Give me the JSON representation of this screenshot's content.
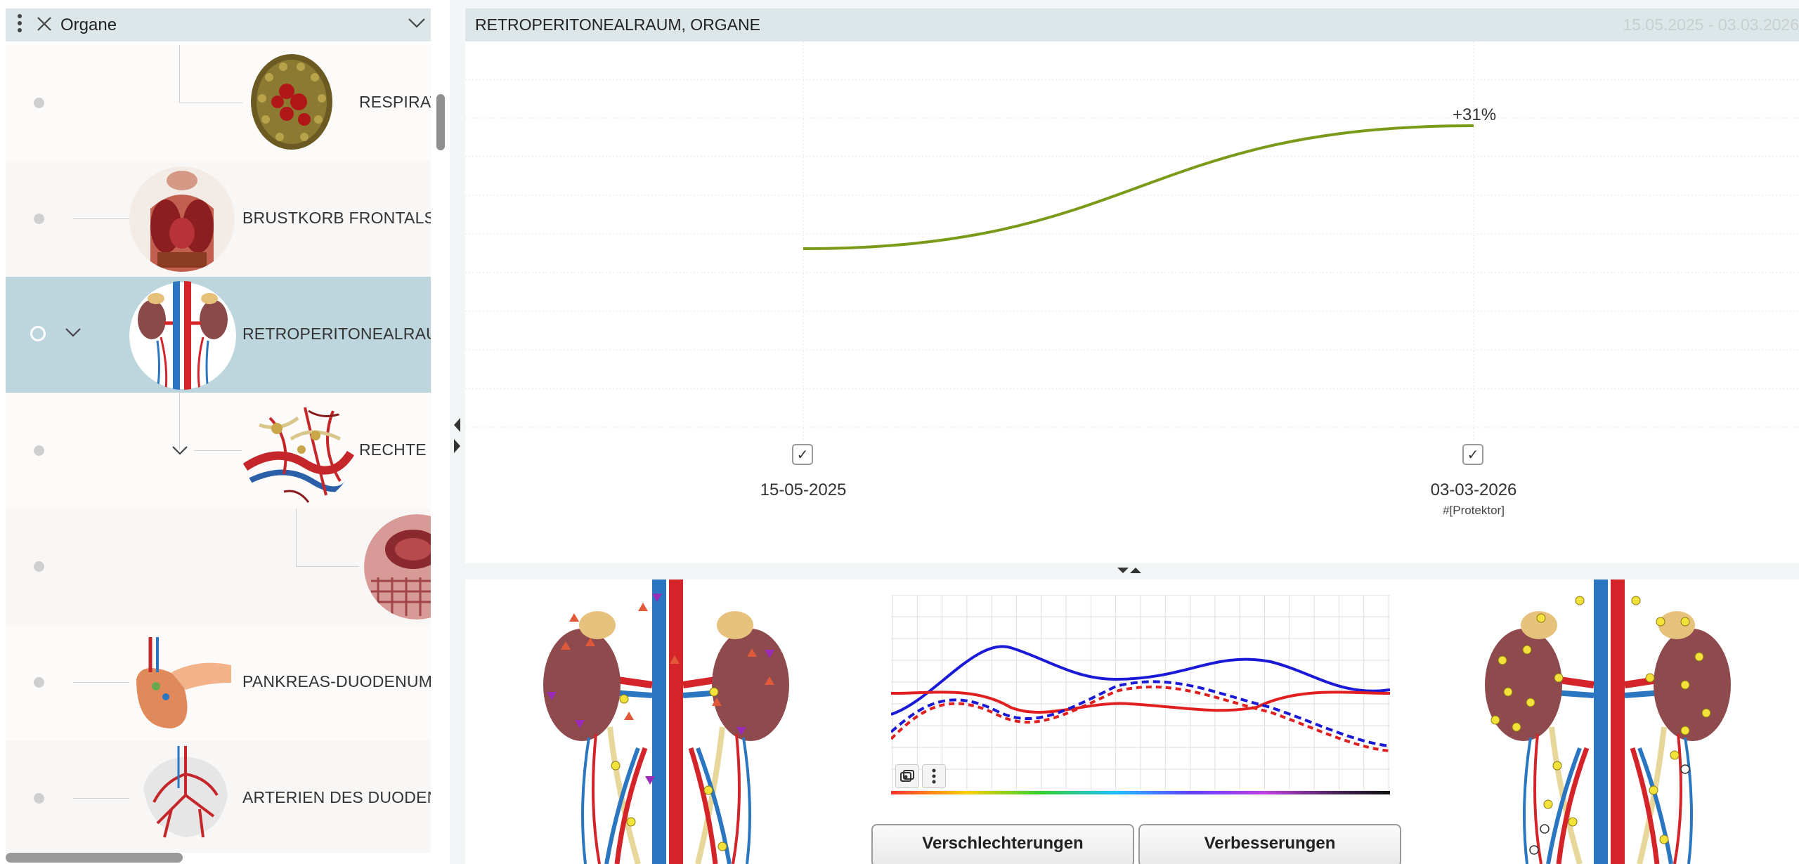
{
  "left_panel": {
    "title": "Organe",
    "items": [
      {
        "label": "RESPIRAT",
        "level": 2
      },
      {
        "label": "BRUSTKORB FRONTALSC",
        "level": 1
      },
      {
        "label": "RETROPERITONEALRAUM",
        "level": 1,
        "selected": true
      },
      {
        "label": "RECHTE N",
        "level": 2
      },
      {
        "label": "",
        "level": 3
      },
      {
        "label": "PANKREAS-DUODENUM",
        "level": 1
      },
      {
        "label": "ARTERIEN DES DUODEN",
        "level": 1
      }
    ]
  },
  "chart_panel": {
    "title": "RETROPERITONEALRAUM, ORGANE",
    "date_range": "15.05.2025 - 03.03.2026",
    "checkbox_checked": "✓",
    "sub_label": "#[Protektor]"
  },
  "chart_data": {
    "type": "line",
    "x": [
      "15-05-2025",
      "03-03-2026"
    ],
    "series": [
      {
        "values": [
          0,
          31
        ],
        "color": "#7a9a1a"
      }
    ],
    "annotations": [
      "+31%"
    ],
    "grid": true
  },
  "bottom_panel": {
    "button_worse": "Verschlechterungen",
    "button_better": "Verbesserungen"
  },
  "colors": {
    "header_bg": "#dde6e8",
    "selected_row": "#bdd6dd",
    "trend_line": "#7a9a1a"
  },
  "icons": [
    "more-vert-icon",
    "close-icon",
    "chevron-down-icon",
    "checkmark-icon",
    "screenshot-icon"
  ]
}
